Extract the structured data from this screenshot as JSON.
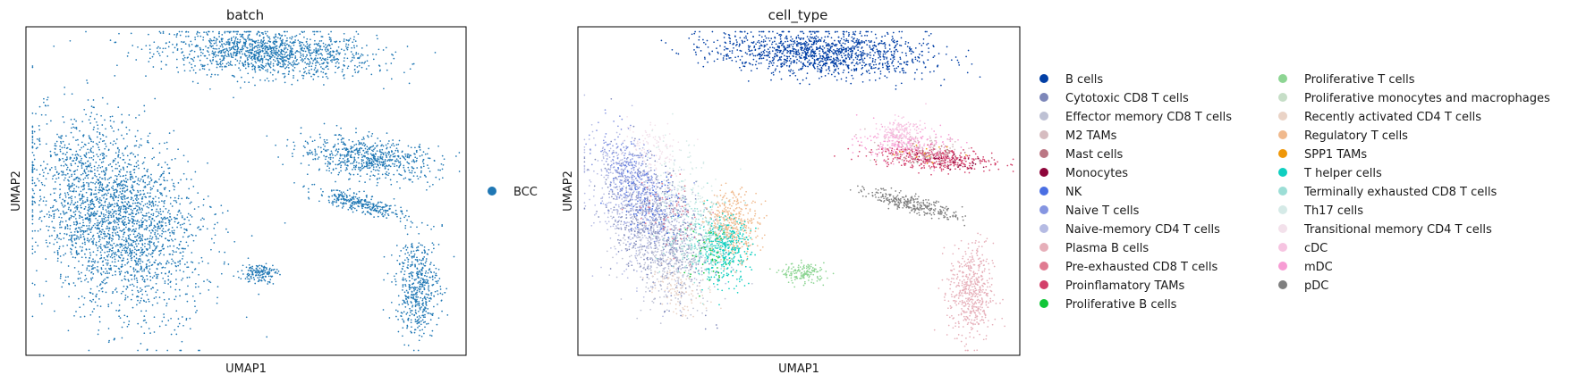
{
  "chart_data": [
    {
      "type": "scatter",
      "title": "batch",
      "xlabel": "UMAP1",
      "ylabel": "UMAP2",
      "grid": false,
      "legend_placement": "right",
      "legend": [
        {
          "name": "BCC",
          "color": "#1f77b4"
        }
      ],
      "clusters": [
        {
          "name": "BCC",
          "color": "#1f77b4",
          "cx": 0.55,
          "cy": 0.92,
          "rx": 0.24,
          "ry": 0.07,
          "rot": -4,
          "n": 1300
        },
        {
          "name": "BCC",
          "color": "#1f77b4",
          "cx": 0.2,
          "cy": 0.42,
          "rx": 0.17,
          "ry": 0.3,
          "rot": 18,
          "n": 2600
        },
        {
          "name": "BCC",
          "color": "#1f77b4",
          "cx": 0.53,
          "cy": 0.25,
          "rx": 0.04,
          "ry": 0.03,
          "rot": 0,
          "n": 150
        },
        {
          "name": "BCC",
          "color": "#1f77b4",
          "cx": 0.78,
          "cy": 0.6,
          "rx": 0.16,
          "ry": 0.06,
          "rot": -10,
          "n": 650
        },
        {
          "name": "BCC",
          "color": "#1f77b4",
          "cx": 0.76,
          "cy": 0.46,
          "rx": 0.11,
          "ry": 0.025,
          "rot": -20,
          "n": 300
        },
        {
          "name": "BCC",
          "color": "#1f77b4",
          "cx": 0.89,
          "cy": 0.21,
          "rx": 0.05,
          "ry": 0.15,
          "rot": 0,
          "n": 500
        }
      ]
    },
    {
      "type": "scatter",
      "title": "cell_type",
      "xlabel": "UMAP1",
      "ylabel": "UMAP2",
      "grid": false,
      "legend_placement": "right",
      "legend": [
        {
          "name": "B cells",
          "color": "#023fa5"
        },
        {
          "name": "Cytotoxic CD8 T cells",
          "color": "#7d87b9"
        },
        {
          "name": "Effector memory CD8 T cells",
          "color": "#bec1d4"
        },
        {
          "name": "M2 TAMs",
          "color": "#d6bcc0"
        },
        {
          "name": "Mast cells",
          "color": "#bb7784"
        },
        {
          "name": "Monocytes",
          "color": "#8e063b"
        },
        {
          "name": "NK",
          "color": "#4a6fe3"
        },
        {
          "name": "Naive T cells",
          "color": "#8595e1"
        },
        {
          "name": "Naive-memory CD4 T cells",
          "color": "#b5bbe3"
        },
        {
          "name": "Plasma B cells",
          "color": "#e6afb9"
        },
        {
          "name": "Pre-exhausted CD8 T cells",
          "color": "#e07b91"
        },
        {
          "name": "Proinflamatory TAMs",
          "color": "#d33f6a"
        },
        {
          "name": "Proliferative B cells",
          "color": "#11c638"
        },
        {
          "name": "Proliferative T cells",
          "color": "#8dd593"
        },
        {
          "name": "Proliferative monocytes and macrophages",
          "color": "#c6dec7"
        },
        {
          "name": "Recently activated CD4 T cells",
          "color": "#ead3c6"
        },
        {
          "name": "Regulatory T cells",
          "color": "#f0b98d"
        },
        {
          "name": "SPP1 TAMs",
          "color": "#ef9708"
        },
        {
          "name": "T helper cells",
          "color": "#0fcfc0"
        },
        {
          "name": "Terminally exhausted CD8 T cells",
          "color": "#9cded6"
        },
        {
          "name": "Th17 cells",
          "color": "#d5eae7"
        },
        {
          "name": "Transitional memory CD4 T cells",
          "color": "#f3e1eb"
        },
        {
          "name": "cDC",
          "color": "#f6c4e1"
        },
        {
          "name": "mDC",
          "color": "#f79cd4"
        },
        {
          "name": "pDC",
          "color": "#7f7f7f"
        }
      ],
      "clusters": [
        {
          "name": "B cells",
          "color": "#023fa5",
          "cx": 0.55,
          "cy": 0.92,
          "rx": 0.24,
          "ry": 0.07,
          "rot": -4,
          "n": 1300
        },
        {
          "name": "Naive-memory CD4 T cells",
          "color": "#b5bbe3",
          "cx": 0.14,
          "cy": 0.45,
          "rx": 0.1,
          "ry": 0.22,
          "rot": 18,
          "n": 700
        },
        {
          "name": "Cytotoxic CD8 T cells",
          "color": "#7d87b9",
          "cx": 0.18,
          "cy": 0.4,
          "rx": 0.1,
          "ry": 0.22,
          "rot": 18,
          "n": 550
        },
        {
          "name": "Effector memory CD8 T cells",
          "color": "#bec1d4",
          "cx": 0.2,
          "cy": 0.3,
          "rx": 0.1,
          "ry": 0.16,
          "rot": 18,
          "n": 400
        },
        {
          "name": "Naive T cells",
          "color": "#8595e1",
          "cx": 0.12,
          "cy": 0.55,
          "rx": 0.06,
          "ry": 0.15,
          "rot": 18,
          "n": 300
        },
        {
          "name": "Regulatory T cells",
          "color": "#f0b98d",
          "cx": 0.35,
          "cy": 0.4,
          "rx": 0.06,
          "ry": 0.1,
          "rot": 0,
          "n": 400
        },
        {
          "name": "T helper cells",
          "color": "#0fcfc0",
          "cx": 0.33,
          "cy": 0.32,
          "rx": 0.06,
          "ry": 0.1,
          "rot": 0,
          "n": 350
        },
        {
          "name": "Terminally exhausted CD8 T cells",
          "color": "#9cded6",
          "cx": 0.28,
          "cy": 0.36,
          "rx": 0.08,
          "ry": 0.12,
          "rot": 0,
          "n": 250
        },
        {
          "name": "Proliferative T cells",
          "color": "#8dd593",
          "cx": 0.51,
          "cy": 0.25,
          "rx": 0.05,
          "ry": 0.03,
          "rot": 0,
          "n": 160
        },
        {
          "name": "Th17 cells",
          "color": "#d5eae7",
          "cx": 0.24,
          "cy": 0.5,
          "rx": 0.08,
          "ry": 0.14,
          "rot": 18,
          "n": 150
        },
        {
          "name": "Transitional memory CD4 T cells",
          "color": "#f3e1eb",
          "cx": 0.17,
          "cy": 0.62,
          "rx": 0.06,
          "ry": 0.1,
          "rot": 18,
          "n": 120
        },
        {
          "name": "Recently activated CD4 T cells",
          "color": "#ead3c6",
          "cx": 0.23,
          "cy": 0.2,
          "rx": 0.06,
          "ry": 0.08,
          "rot": 18,
          "n": 110
        },
        {
          "name": "NK",
          "color": "#4a6fe3",
          "cx": 0.16,
          "cy": 0.48,
          "rx": 0.07,
          "ry": 0.13,
          "rot": 18,
          "n": 90
        },
        {
          "name": "Pre-exhausted CD8 T cells",
          "color": "#e07b91",
          "cx": 0.22,
          "cy": 0.42,
          "rx": 0.07,
          "ry": 0.1,
          "rot": 18,
          "n": 60
        },
        {
          "name": "Proliferative B cells",
          "color": "#11c638",
          "cx": 0.3,
          "cy": 0.3,
          "rx": 0.06,
          "ry": 0.1,
          "rot": 0,
          "n": 40
        },
        {
          "name": "Proinflamatory TAMs",
          "color": "#d33f6a",
          "cx": 0.8,
          "cy": 0.6,
          "rx": 0.14,
          "ry": 0.035,
          "rot": -6,
          "n": 380
        },
        {
          "name": "mDC",
          "color": "#f79cd4",
          "cx": 0.74,
          "cy": 0.64,
          "rx": 0.1,
          "ry": 0.05,
          "rot": -6,
          "n": 200
        },
        {
          "name": "cDC",
          "color": "#f6c4e1",
          "cx": 0.73,
          "cy": 0.68,
          "rx": 0.06,
          "ry": 0.04,
          "rot": 0,
          "n": 160
        },
        {
          "name": "Mast cells",
          "color": "#bb7784",
          "cx": 0.8,
          "cy": 0.61,
          "rx": 0.1,
          "ry": 0.03,
          "rot": -6,
          "n": 60
        },
        {
          "name": "M2 TAMs",
          "color": "#d6bcc0",
          "cx": 0.77,
          "cy": 0.63,
          "rx": 0.12,
          "ry": 0.04,
          "rot": -6,
          "n": 70
        },
        {
          "name": "Monocytes",
          "color": "#8e063b",
          "cx": 0.84,
          "cy": 0.59,
          "rx": 0.08,
          "ry": 0.025,
          "rot": -6,
          "n": 40
        },
        {
          "name": "SPP1 TAMs",
          "color": "#ef9708",
          "cx": 0.78,
          "cy": 0.62,
          "rx": 0.08,
          "ry": 0.03,
          "rot": -6,
          "n": 15
        },
        {
          "name": "Proliferative monocytes and macrophages",
          "color": "#c6dec7",
          "cx": 0.75,
          "cy": 0.6,
          "rx": 0.08,
          "ry": 0.03,
          "rot": -6,
          "n": 20
        },
        {
          "name": "pDC",
          "color": "#7f7f7f",
          "cx": 0.76,
          "cy": 0.46,
          "rx": 0.11,
          "ry": 0.025,
          "rot": -20,
          "n": 300
        },
        {
          "name": "Plasma B cells",
          "color": "#e6afb9",
          "cx": 0.89,
          "cy": 0.19,
          "rx": 0.05,
          "ry": 0.15,
          "rot": 0,
          "n": 500
        }
      ]
    }
  ]
}
